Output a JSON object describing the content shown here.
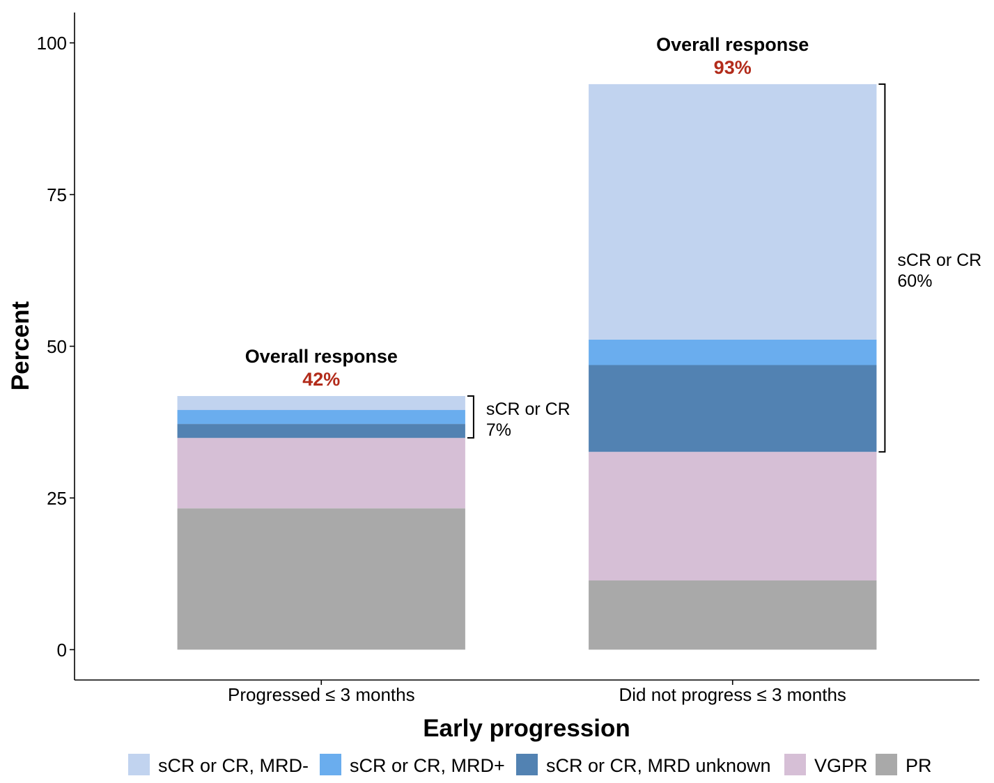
{
  "chart_data": {
    "type": "bar",
    "stacked": true,
    "title": "",
    "xlabel": "Early progression",
    "ylabel": "Percent",
    "ylim": [
      -5,
      105
    ],
    "yticks": [
      0,
      25,
      50,
      75,
      100
    ],
    "grid": false,
    "legend_position": "bottom",
    "categories": [
      "Progressed ≤ 3 months",
      "Did not progress ≤ 3 months"
    ],
    "series": [
      {
        "name": "PR",
        "color": "#a9a9a9",
        "values": [
          23.3,
          11.4
        ]
      },
      {
        "name": "VGPR",
        "color": "#d6bfd6",
        "values": [
          11.6,
          21.2
        ]
      },
      {
        "name": "sCR or CR, MRD unknown",
        "color": "#5282b2",
        "values": [
          2.3,
          14.3
        ]
      },
      {
        "name": "sCR or CR, MRD+",
        "color": "#6aadee",
        "values": [
          2.3,
          4.2
        ]
      },
      {
        "name": "sCR or CR, MRD-",
        "color": "#c1d3ef",
        "values": [
          2.3,
          42.1
        ]
      }
    ],
    "legend_order": [
      4,
      3,
      2,
      1,
      0
    ],
    "annotations": [
      {
        "title": "Overall response",
        "value_label": "42%",
        "bracket_label": "sCR or CR",
        "bracket_value": "7%",
        "bracket_series": [
          2,
          3,
          4
        ]
      },
      {
        "title": "Overall response",
        "value_label": "93%",
        "bracket_label": "sCR or CR",
        "bracket_value": "60%",
        "bracket_series": [
          2,
          3,
          4
        ]
      }
    ],
    "annotation_value_color": "#b22b1a",
    "axis_color": "#000000"
  }
}
